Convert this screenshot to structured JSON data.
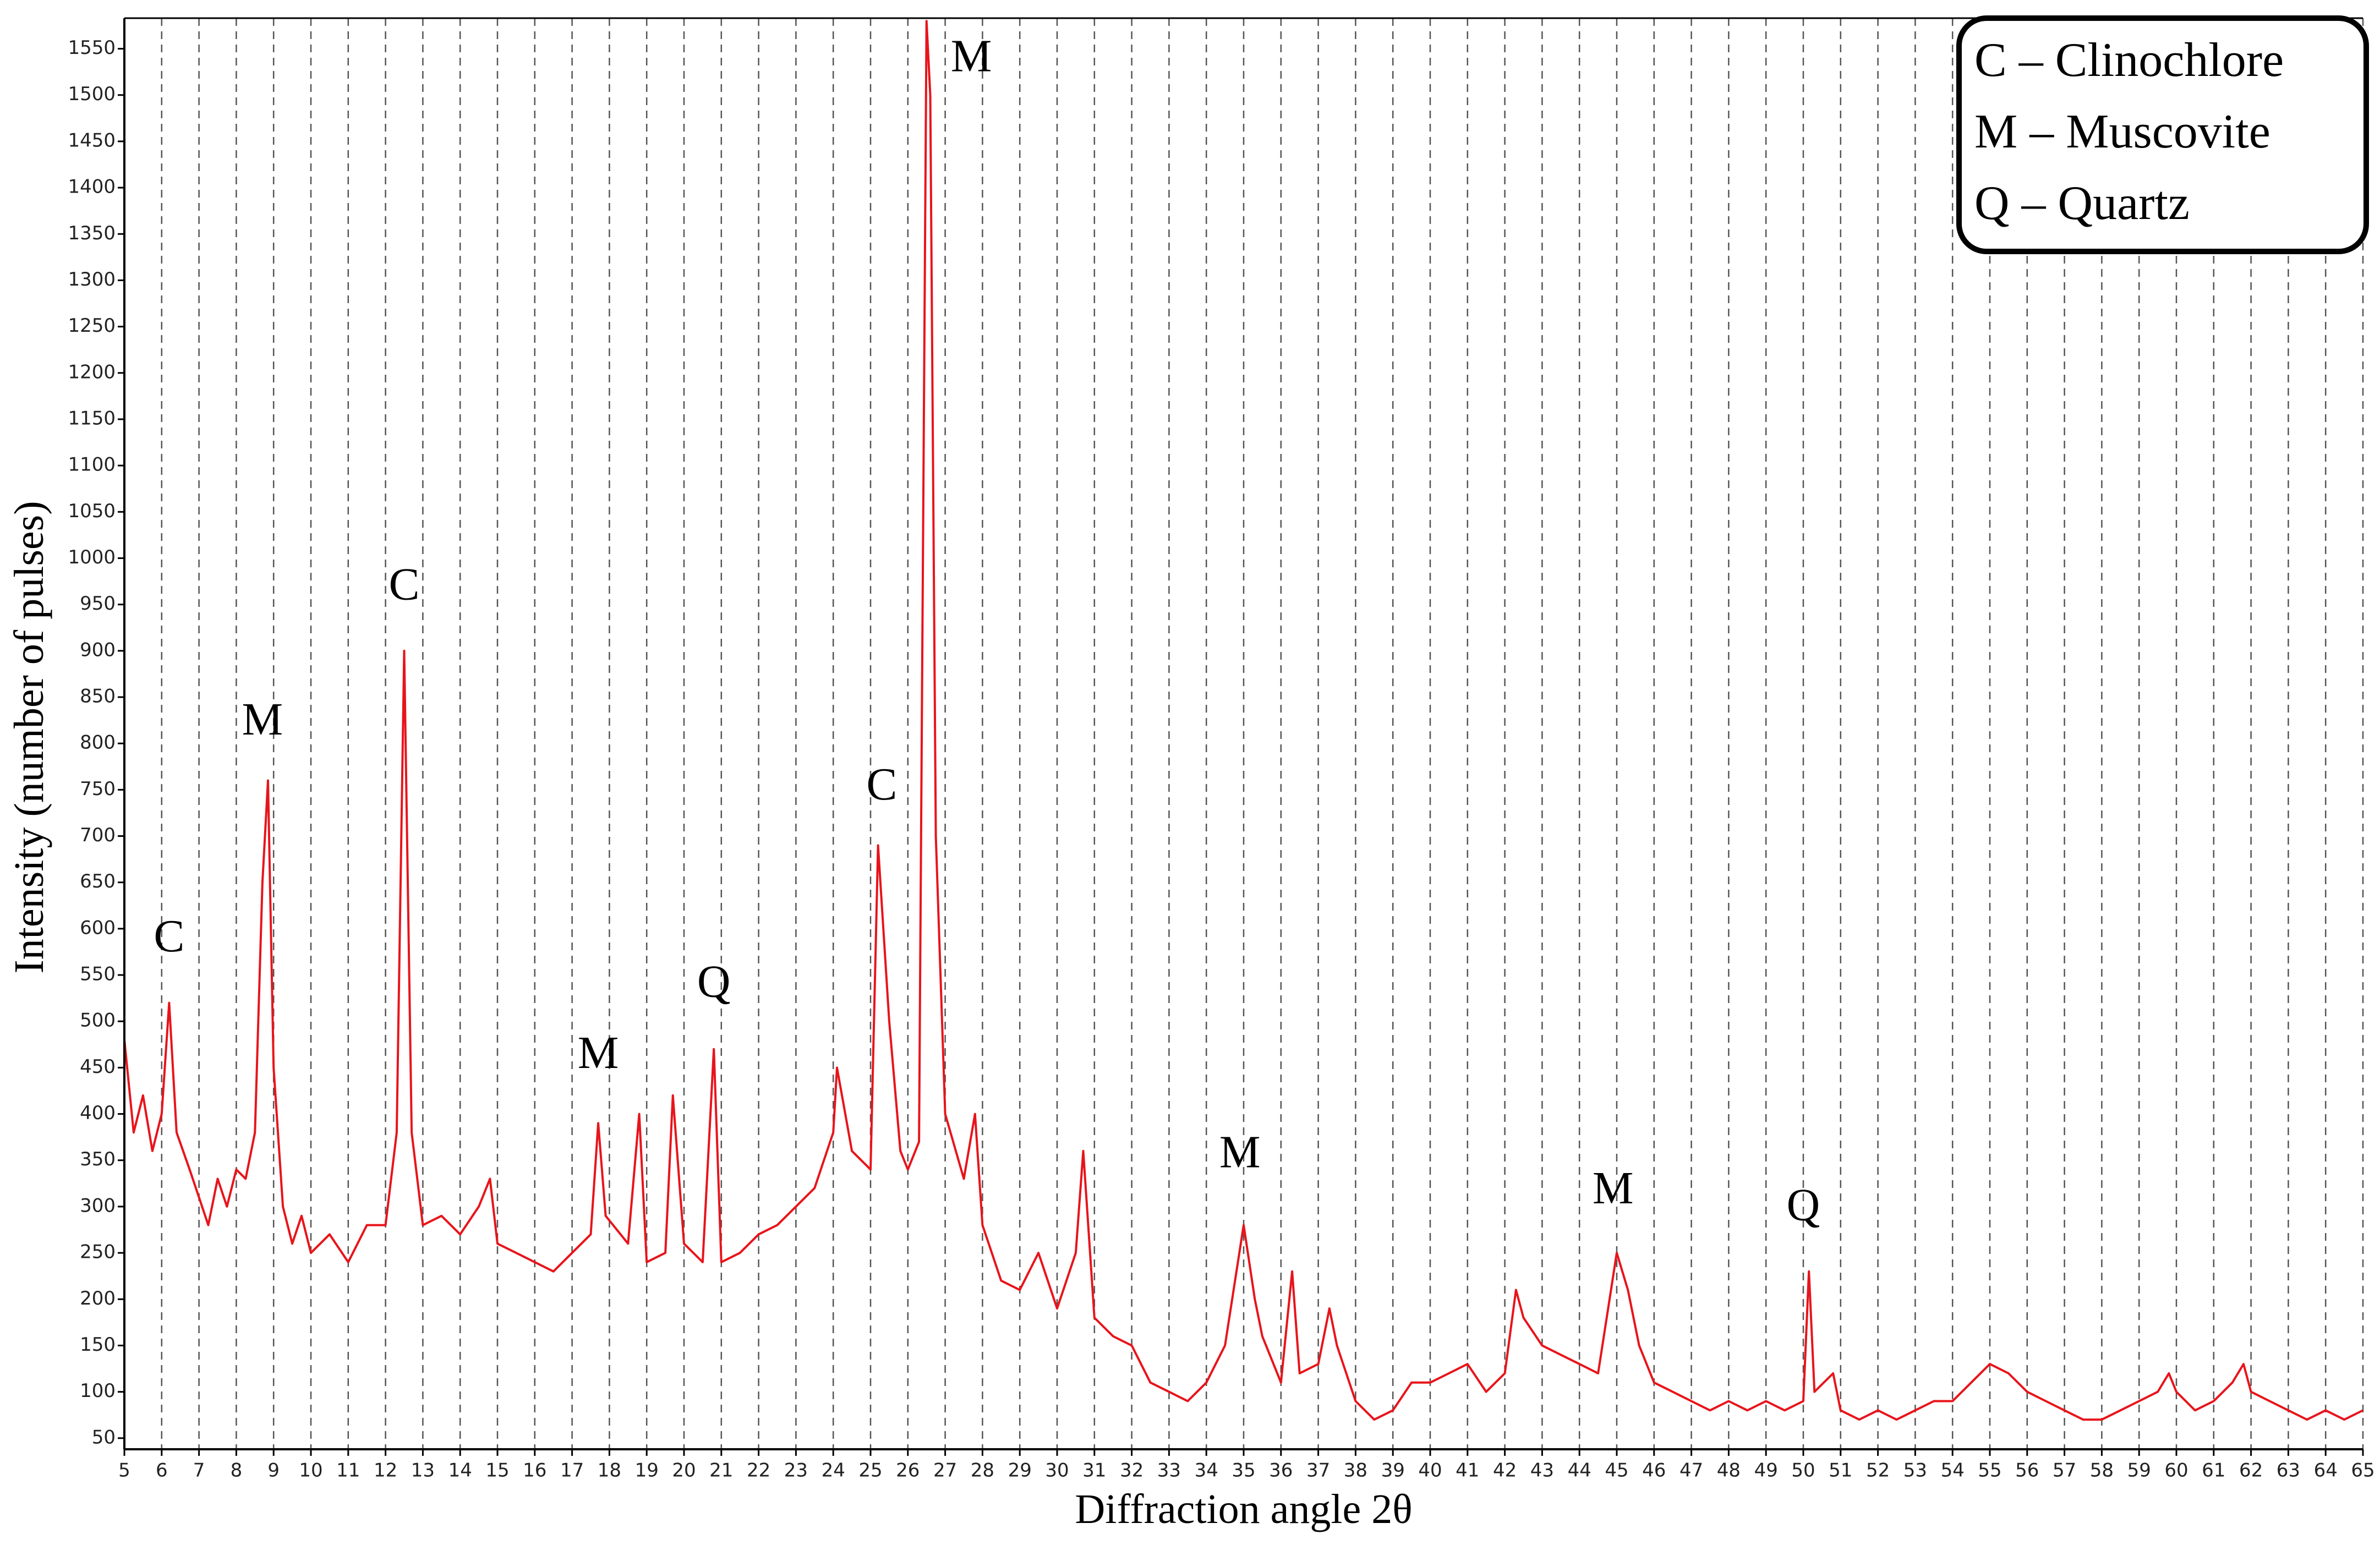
{
  "chart_data": {
    "type": "line",
    "xlabel": "Diffraction angle 2θ",
    "ylabel": "Intensity (number of pulses)",
    "legend_text": [
      "C – Clinochlore",
      "M – Muscovite",
      "Q – Quartz"
    ],
    "legend_position": "upper right",
    "grid": true,
    "xlim": [
      5,
      65
    ],
    "ylim": [
      38,
      1583
    ],
    "xticks": [
      5,
      6,
      7,
      8,
      9,
      10,
      11,
      12,
      13,
      14,
      15,
      16,
      17,
      18,
      19,
      20,
      21,
      22,
      23,
      24,
      25,
      26,
      27,
      28,
      29,
      30,
      31,
      32,
      33,
      34,
      35,
      36,
      37,
      38,
      39,
      40,
      41,
      42,
      43,
      44,
      45,
      46,
      47,
      48,
      49,
      50,
      51,
      52,
      53,
      54,
      55,
      56,
      57,
      58,
      59,
      60,
      61,
      62,
      63,
      64,
      65
    ],
    "yticks": [
      50,
      100,
      150,
      200,
      250,
      300,
      350,
      400,
      450,
      500,
      550,
      600,
      650,
      700,
      750,
      800,
      850,
      900,
      950,
      1000,
      1050,
      1100,
      1150,
      1200,
      1250,
      1300,
      1350,
      1400,
      1450,
      1500,
      1550
    ],
    "annotations": [
      {
        "text": "C",
        "x": 6.2,
        "y": 587
      },
      {
        "text": "M",
        "x": 8.7,
        "y": 821
      },
      {
        "text": "C",
        "x": 12.5,
        "y": 967
      },
      {
        "text": "M",
        "x": 17.7,
        "y": 461
      },
      {
        "text": "Q",
        "x": 20.8,
        "y": 538
      },
      {
        "text": "C",
        "x": 25.3,
        "y": 751
      },
      {
        "text": "M",
        "x": 27.7,
        "y": 1537
      },
      {
        "text": "M",
        "x": 34.9,
        "y": 354
      },
      {
        "text": "M",
        "x": 44.9,
        "y": 315
      },
      {
        "text": "Q",
        "x": 50.0,
        "y": 297
      }
    ],
    "series": [
      {
        "color": "#e8141b",
        "x": [
          5.0,
          5.25,
          5.5,
          5.75,
          6.0,
          6.2,
          6.4,
          6.75,
          7.0,
          7.25,
          7.5,
          7.75,
          8.0,
          8.25,
          8.5,
          8.7,
          8.85,
          9.0,
          9.25,
          9.5,
          9.75,
          10.0,
          10.5,
          11.0,
          11.5,
          12.0,
          12.3,
          12.5,
          12.7,
          13.0,
          13.5,
          14.0,
          14.5,
          14.8,
          15.0,
          15.5,
          16.0,
          16.5,
          17.0,
          17.5,
          17.7,
          17.9,
          18.5,
          18.8,
          19.0,
          19.5,
          19.7,
          20.0,
          20.5,
          20.8,
          21.0,
          21.5,
          22.0,
          22.5,
          23.0,
          23.5,
          24.0,
          24.1,
          24.5,
          25.0,
          25.2,
          25.5,
          25.8,
          26.0,
          26.3,
          26.5,
          26.6,
          26.75,
          27.0,
          27.5,
          27.8,
          28.0,
          28.5,
          29.0,
          29.5,
          30.0,
          30.5,
          30.7,
          31.0,
          31.5,
          32.0,
          32.5,
          33.0,
          33.5,
          34.0,
          34.5,
          35.0,
          35.3,
          35.5,
          36.0,
          36.3,
          36.5,
          37.0,
          37.3,
          37.5,
          38.0,
          38.5,
          39.0,
          39.5,
          40.0,
          40.5,
          41.0,
          41.5,
          42.0,
          42.3,
          42.5,
          43.0,
          43.5,
          44.0,
          44.5,
          45.0,
          45.3,
          45.6,
          46.0,
          46.5,
          47.0,
          47.5,
          48.0,
          48.5,
          49.0,
          49.5,
          50.0,
          50.15,
          50.3,
          50.8,
          51.0,
          51.5,
          52.0,
          52.5,
          53.0,
          53.5,
          54.0,
          54.5,
          55.0,
          55.5,
          56.0,
          56.5,
          57.0,
          57.5,
          58.0,
          58.5,
          59.0,
          59.5,
          59.8,
          60.0,
          60.5,
          61.0,
          61.5,
          61.8,
          62.0,
          62.5,
          63.0,
          63.5,
          64.0,
          64.5,
          65.0
        ],
        "values": [
          480,
          380,
          420,
          360,
          400,
          520,
          380,
          340,
          310,
          280,
          330,
          300,
          340,
          330,
          380,
          650,
          760,
          450,
          300,
          260,
          290,
          250,
          270,
          240,
          280,
          280,
          380,
          900,
          380,
          280,
          290,
          270,
          300,
          330,
          260,
          250,
          240,
          230,
          250,
          270,
          390,
          290,
          260,
          400,
          240,
          250,
          420,
          260,
          240,
          470,
          240,
          250,
          270,
          280,
          300,
          320,
          380,
          450,
          360,
          340,
          690,
          500,
          360,
          340,
          370,
          1580,
          1500,
          700,
          400,
          330,
          400,
          280,
          220,
          210,
          250,
          190,
          250,
          360,
          180,
          160,
          150,
          110,
          100,
          90,
          110,
          150,
          280,
          200,
          160,
          110,
          230,
          120,
          130,
          190,
          150,
          90,
          70,
          80,
          110,
          110,
          120,
          130,
          100,
          120,
          210,
          180,
          150,
          140,
          130,
          120,
          250,
          210,
          150,
          110,
          100,
          90,
          80,
          90,
          80,
          90,
          80,
          90,
          230,
          100,
          120,
          80,
          70,
          80,
          70,
          80,
          90,
          90,
          110,
          130,
          120,
          100,
          90,
          80,
          70,
          70,
          80,
          90,
          100,
          120,
          100,
          80,
          90,
          110,
          130,
          100,
          90,
          80,
          70,
          80,
          70,
          80
        ]
      }
    ]
  }
}
